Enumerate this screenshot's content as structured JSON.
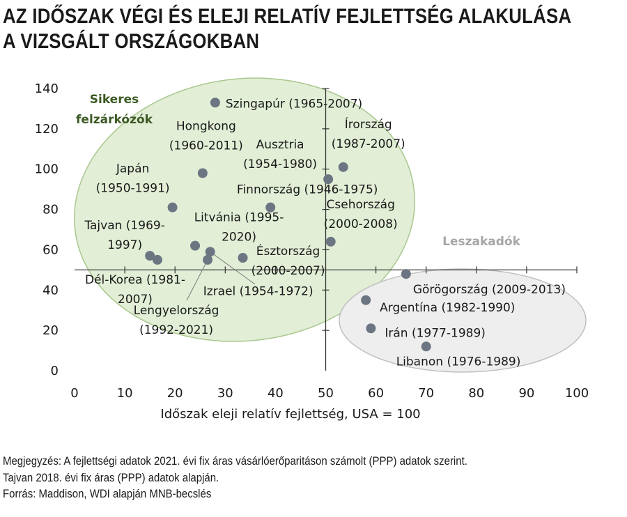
{
  "title": {
    "line1": "AZ IDŐSZAK VÉGI ÉS ELEJI RELATÍV FEJLETTSÉG ALAKULÁSA",
    "line2": "A VIZSGÁLT ORSZÁGOKBAN"
  },
  "notes": [
    "Megjegyzés: A fejlettségi adatok 2021. évi fix áras vásárlóerőparitáson számolt (PPP) adatok szerint.",
    "Tajvan 2018. évi fix áras (PPP) adatok alapján.",
    "Forrás: Maddison, WDI alapján MNB-becslés"
  ],
  "colors": {
    "point": "#6b7682",
    "green_fill": "#e2eed6",
    "green_stroke": "#a9c78f",
    "green_text": "#3c5a24",
    "grey_fill": "#eeeeee",
    "grey_stroke": "#bfbfbf",
    "grey_text": "#a6a6a6",
    "axis": "#333333"
  },
  "chart_data": {
    "type": "scatter",
    "xlabel": "Időszak eleji relatív fejlettség, USA = 100",
    "ylabel": "",
    "xlim": [
      0,
      100
    ],
    "ylim": [
      0,
      140
    ],
    "x_ticks": [
      0,
      10,
      20,
      30,
      40,
      50,
      60,
      70,
      80,
      90,
      100
    ],
    "y_ticks": [
      0,
      20,
      40,
      60,
      80,
      100,
      120,
      140
    ],
    "x_axis_crosses_y_at": 50,
    "y_axis_crosses_x_at": 50,
    "grid": false,
    "groups": [
      {
        "name": "Sikeres felzárkózók",
        "label_lines": [
          "Sikeres",
          "felzárkózók"
        ]
      },
      {
        "name": "Leszakadók",
        "label_lines": [
          "Leszakadók"
        ]
      }
    ],
    "points": [
      {
        "label_lines": [
          "Szingapúr (1965-2007)"
        ],
        "x": 28,
        "y": 133,
        "group": "Sikeres felzárkózók"
      },
      {
        "label_lines": [
          "Hongkong",
          "(1960-2011)"
        ],
        "x": 25.5,
        "y": 98,
        "group": "Sikeres felzárkózók"
      },
      {
        "label_lines": [
          "Japán",
          "(1950-1991)"
        ],
        "x": 19.5,
        "y": 81,
        "group": "Sikeres felzárkózók"
      },
      {
        "label_lines": [
          "Ausztria",
          "(1954-1980)"
        ],
        "x": 50.5,
        "y": 95,
        "group": "Sikeres felzárkózók"
      },
      {
        "label_lines": [
          "Írország",
          "(1987-2007)"
        ],
        "x": 53.5,
        "y": 101,
        "group": "Sikeres felzárkózók"
      },
      {
        "label_lines": [
          "Finnország (1946-1975)"
        ],
        "x": 39,
        "y": 81,
        "group": "Sikeres felzárkózók"
      },
      {
        "label_lines": [
          "Csehország",
          "(2000-2008)"
        ],
        "x": 51,
        "y": 64,
        "group": "Sikeres felzárkózók"
      },
      {
        "label_lines": [
          "Litvánia (1995-",
          "2020)"
        ],
        "x": 24,
        "y": 62,
        "group": "Sikeres felzárkózók"
      },
      {
        "label_lines": [
          "Tajvan (1969-",
          "1997)"
        ],
        "x": 15,
        "y": 57,
        "group": "Sikeres felzárkózók"
      },
      {
        "label_lines": [
          "Dél-Korea (1981-",
          "2007)"
        ],
        "x": 16.5,
        "y": 55,
        "group": "Sikeres felzárkózók"
      },
      {
        "label_lines": [
          "Észtország",
          "(2000-2007)"
        ],
        "x": 33.5,
        "y": 56,
        "group": "Sikeres felzárkózók"
      },
      {
        "label_lines": [
          "Izrael (1954-1972)"
        ],
        "x": 27,
        "y": 59,
        "group": "Sikeres felzárkózók"
      },
      {
        "label_lines": [
          "Lengyelország",
          "(1992-2021)"
        ],
        "x": 26.5,
        "y": 55,
        "group": "Sikeres felzárkózók"
      },
      {
        "label_lines": [
          "Görögország (2009-2013)"
        ],
        "x": 66,
        "y": 48,
        "group": "Leszakadók"
      },
      {
        "label_lines": [
          "Argentína (1982-1990)"
        ],
        "x": 58,
        "y": 35,
        "group": "Leszakadók"
      },
      {
        "label_lines": [
          "Irán (1977-1989)"
        ],
        "x": 59,
        "y": 21,
        "group": "Leszakadók"
      },
      {
        "label_lines": [
          "Libanon (1976-1989)"
        ],
        "x": 70,
        "y": 12,
        "group": "Leszakadók"
      }
    ]
  }
}
